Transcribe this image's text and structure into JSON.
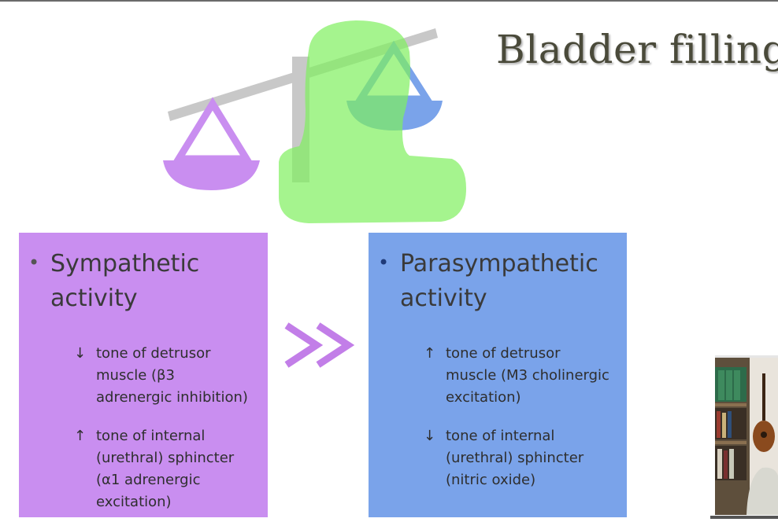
{
  "slide": {
    "title": "Bladder filling"
  },
  "left_panel": {
    "heading": "Sympathetic\nactivity",
    "items": [
      {
        "arrow": "↓",
        "text": "tone of detrusor\nmuscle (β3\nadrenergic inhibition)"
      },
      {
        "arrow": "↑",
        "text": "tone of internal\n(urethral) sphincter\n(α1 adrenergic\nexcitation)"
      }
    ]
  },
  "connector": {
    "symbol": ">>"
  },
  "right_panel": {
    "heading": "Parasympathetic\nactivity",
    "items": [
      {
        "arrow": "↑",
        "text": "tone of detrusor\nmuscle (M3 cholinergic\nexcitation)"
      },
      {
        "arrow": "↓",
        "text": "tone of internal\n(urethral) sphincter\n(nitric oxide)"
      }
    ]
  },
  "colors": {
    "sympathetic": "#c98ef0",
    "parasympathetic": "#7aa3ea",
    "bladder_overlay": "#7fef5e",
    "scale_beam": "#c8c8c8",
    "arrows": "#c27ee8"
  },
  "icons": [
    "balance-scale-icon",
    "bladder-shape-icon",
    "double-chevron-icon",
    "webcam-feed"
  ]
}
